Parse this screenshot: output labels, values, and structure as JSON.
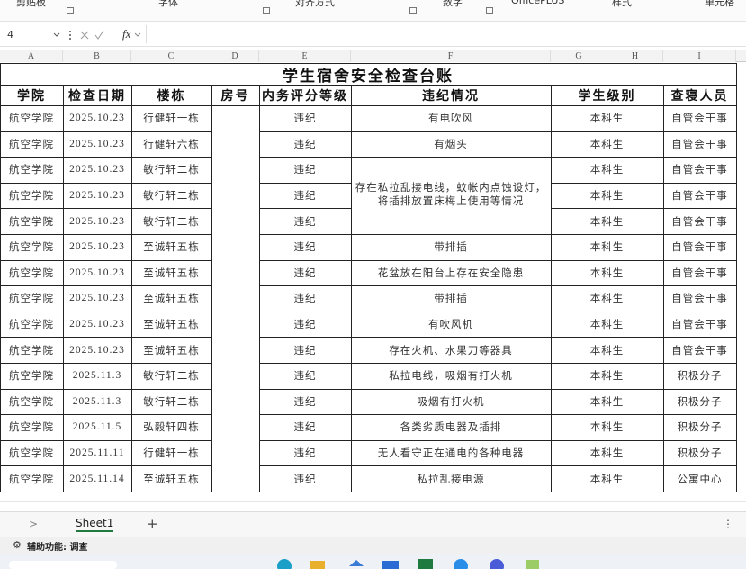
{
  "ribbon": [
    "剪贴板",
    "字体",
    "对齐方式",
    "数字",
    "OfficePLUS",
    "样式",
    "单元格"
  ],
  "formula_bar": {
    "cell_name": "4",
    "fx": "fx"
  },
  "columns": [
    "A",
    "B",
    "C",
    "D",
    "E",
    "F",
    "G",
    "H",
    "I"
  ],
  "table": {
    "title": "学生宿舍安全检查台账",
    "headers": [
      "学院",
      "检查日期",
      "楼栋",
      "房号",
      "内务评分等级",
      "违纪情况",
      "学生级别",
      "查寝人员"
    ],
    "rows": [
      [
        "航空学院",
        "2025.10.23",
        "行健轩一栋",
        null,
        "违纪",
        "有电吹风",
        "本科生",
        "自管会干事"
      ],
      [
        "航空学院",
        "2025.10.23",
        "行健轩六栋",
        null,
        "违纪",
        "有烟头",
        "本科生",
        "自管会干事"
      ],
      [
        "航空学院",
        "2025.10.23",
        "敏行轩二栋",
        null,
        "违纪",
        null,
        "本科生",
        "自管会干事"
      ],
      [
        "航空学院",
        "2025.10.23",
        "敏行轩二栋",
        null,
        "违纪",
        null,
        "本科生",
        "自管会干事"
      ],
      [
        "航空学院",
        "2025.10.23",
        "敏行轩二栋",
        null,
        "违纪",
        null,
        "本科生",
        "自管会干事"
      ],
      [
        "航空学院",
        "2025.10.23",
        "至诚轩五栋",
        null,
        "违纪",
        "带排插",
        "本科生",
        "自管会干事"
      ],
      [
        "航空学院",
        "2025.10.23",
        "至诚轩五栋",
        null,
        "违纪",
        "花盆放在阳台上存在安全隐患",
        "本科生",
        "自管会干事"
      ],
      [
        "航空学院",
        "2025.10.23",
        "至诚轩五栋",
        null,
        "违纪",
        "带排插",
        "本科生",
        "自管会干事"
      ],
      [
        "航空学院",
        "2025.10.23",
        "至诚轩五栋",
        null,
        "违纪",
        "有吹风机",
        "本科生",
        "自管会干事"
      ],
      [
        "航空学院",
        "2025.10.23",
        "至诚轩五栋",
        null,
        "违纪",
        "存在火机、水果刀等器具",
        "本科生",
        "自管会干事"
      ],
      [
        "航空学院",
        "2025.11.3",
        "敏行轩二栋",
        null,
        "违纪",
        "私拉电线，吸烟有打火机",
        "本科生",
        "积极分子"
      ],
      [
        "航空学院",
        "2025.11.3",
        "敏行轩二栋",
        null,
        "违纪",
        "吸烟有打火机",
        "本科生",
        "积极分子"
      ],
      [
        "航空学院",
        "2025.11.5",
        "弘毅轩四栋",
        null,
        "违纪",
        "各类劣质电器及插排",
        "本科生",
        "积极分子"
      ],
      [
        "航空学院",
        "2025.11.11",
        "行健轩一栋",
        null,
        "违纪",
        "无人看守正在通电的各种电器",
        "本科生",
        "积极分子"
      ],
      [
        "航空学院",
        "2025.11.14",
        "至诚轩五栋",
        null,
        "违纪",
        "私拉乱接电源",
        "本科生",
        "公寓中心"
      ]
    ],
    "merged_violation": [
      "存在私拉乱接电线，蚊帐内点蚀设灯，",
      "将插排放置床梅上使用等情况"
    ]
  },
  "sheet_tab": "Sheet1",
  "status": "辅助功能: 调查"
}
